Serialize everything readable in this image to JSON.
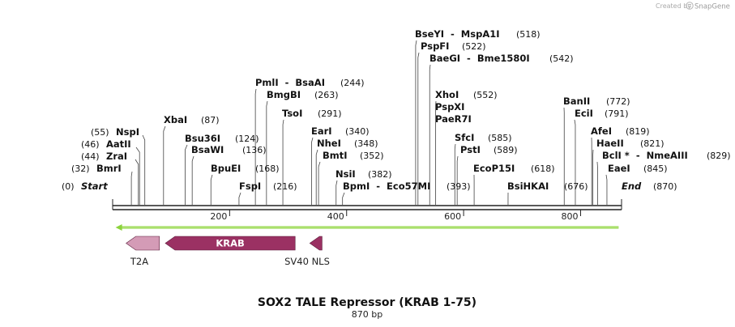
{
  "credit": {
    "prefix": "Created by",
    "brand": "SnapGene"
  },
  "map": {
    "title": "SOX2 TALE Repressor (KRAB 1-75)",
    "length_label": "870 bp",
    "length_bp": 870,
    "start_label": "Start",
    "start_pos": "(0)",
    "end_label": "End",
    "end_pos": "(870)",
    "ticks": [
      {
        "bp": 200,
        "label": "200"
      },
      {
        "bp": 400,
        "label": "400"
      },
      {
        "bp": 600,
        "label": "600"
      },
      {
        "bp": 800,
        "label": "800"
      }
    ],
    "sites": [
      {
        "name": "BmrI",
        "pos": "(32)",
        "bp": 32,
        "side": "left"
      },
      {
        "name": "ZraI",
        "pos": "(44)",
        "bp": 44,
        "side": "left"
      },
      {
        "name": "AatII",
        "pos": "(46)",
        "bp": 46,
        "side": "left"
      },
      {
        "name": "NspI",
        "pos": "(55)",
        "bp": 55,
        "side": "left"
      },
      {
        "name": "XbaI",
        "pos": "(87)",
        "bp": 87,
        "side": "right"
      },
      {
        "name": "Bsu36I",
        "pos": "(124)",
        "bp": 124,
        "side": "right"
      },
      {
        "name": "BsaWI",
        "pos": "(136)",
        "bp": 136,
        "side": "right"
      },
      {
        "name": "BpuEI",
        "pos": "(168)",
        "bp": 168,
        "side": "right"
      },
      {
        "name": "FspI",
        "pos": "(216)",
        "bp": 216,
        "side": "right"
      },
      {
        "name": "PmlI  -  BsaAI",
        "pos": "(244)",
        "bp": 244,
        "side": "right"
      },
      {
        "name": "BmgBI",
        "pos": "(263)",
        "bp": 263,
        "side": "right"
      },
      {
        "name": "TsoI",
        "pos": "(291)",
        "bp": 291,
        "side": "right"
      },
      {
        "name": "EarI",
        "pos": "(340)",
        "bp": 340,
        "side": "right"
      },
      {
        "name": "NheI",
        "pos": "(348)",
        "bp": 348,
        "side": "right"
      },
      {
        "name": "BmtI",
        "pos": "(352)",
        "bp": 352,
        "side": "right"
      },
      {
        "name": "NsiI",
        "pos": "(382)",
        "bp": 382,
        "side": "right"
      },
      {
        "name": "BpmI  -  Eco57MI",
        "pos": "(393)",
        "bp": 393,
        "side": "right"
      },
      {
        "name": "BseYI  -  MspA1I",
        "pos": "(518)",
        "bp": 518,
        "side": "right"
      },
      {
        "name": "PspFI",
        "pos": "(522)",
        "bp": 522,
        "side": "right"
      },
      {
        "name": "BaeGI  -  Bme1580I",
        "pos": "(542)",
        "bp": 542,
        "side": "right"
      },
      {
        "name": "XhoI",
        "pos": "(552)",
        "bp": 552,
        "side": "right"
      },
      {
        "name": "PspXI",
        "pos": "",
        "bp": 552,
        "side": "right"
      },
      {
        "name": "PaeR7I",
        "pos": "",
        "bp": 552,
        "side": "right"
      },
      {
        "name": "SfcI",
        "pos": "(585)",
        "bp": 585,
        "side": "right"
      },
      {
        "name": "PstI",
        "pos": "(589)",
        "bp": 589,
        "side": "right"
      },
      {
        "name": "EcoP15I",
        "pos": "(618)",
        "bp": 618,
        "side": "right"
      },
      {
        "name": "BsiHKAI",
        "pos": "(676)",
        "bp": 676,
        "side": "right"
      },
      {
        "name": "BanII",
        "pos": "(772)",
        "bp": 772,
        "side": "right"
      },
      {
        "name": "EciI",
        "pos": "(791)",
        "bp": 791,
        "side": "right"
      },
      {
        "name": "AfeI",
        "pos": "(819)",
        "bp": 819,
        "side": "right"
      },
      {
        "name": "HaeII",
        "pos": "(821)",
        "bp": 821,
        "side": "right"
      },
      {
        "name": "BclI *  -  NmeAIII",
        "pos": "(829)",
        "bp": 829,
        "side": "right"
      },
      {
        "name": "EaeI",
        "pos": "(845)",
        "bp": 845,
        "side": "right"
      }
    ],
    "features": [
      {
        "name": "T2A",
        "start_bp": 23,
        "end_bp": 80,
        "strand": "reverse",
        "color": "#d49bb6",
        "label_inside": false
      },
      {
        "name": "KRAB",
        "start_bp": 90,
        "end_bp": 312,
        "strand": "reverse",
        "color": "#9b3163",
        "label_inside": true
      },
      {
        "name": "SV40 NLS",
        "start_bp": 337,
        "end_bp": 358,
        "strand": "reverse",
        "color": "#9b3163",
        "label_inside": false
      }
    ],
    "orf": {
      "start_bp": 5,
      "end_bp": 865,
      "strand": "reverse",
      "color": "#8cd33c"
    }
  }
}
